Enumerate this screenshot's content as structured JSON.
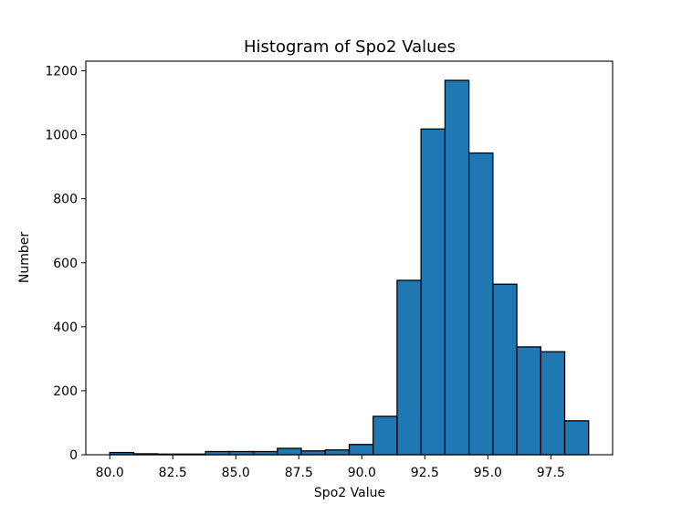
{
  "chart_data": {
    "type": "bar",
    "title": "Histogram of Spo2 Values",
    "xlabel": "Spo2 Value",
    "ylabel": "Number",
    "xlim": [
      79.05,
      99.95
    ],
    "ylim": [
      0,
      1230
    ],
    "xticks": [
      80.0,
      82.5,
      85.0,
      87.5,
      90.0,
      92.5,
      95.0,
      97.5
    ],
    "xtick_labels": [
      "80.0",
      "82.5",
      "85.0",
      "87.5",
      "90.0",
      "92.5",
      "95.0",
      "97.5"
    ],
    "yticks": [
      0,
      200,
      400,
      600,
      800,
      1000,
      1200
    ],
    "ytick_labels": [
      "0",
      "200",
      "400",
      "600",
      "800",
      "1000",
      "1200"
    ],
    "bin_edges": [
      80.0,
      80.95,
      81.9,
      82.85,
      83.8,
      84.75,
      85.7,
      86.65,
      87.6,
      88.55,
      89.5,
      90.45,
      91.4,
      92.35,
      93.3,
      94.25,
      95.2,
      96.15,
      97.1,
      98.05,
      99.0
    ],
    "values": [
      7,
      3,
      2,
      2,
      10,
      10,
      10,
      20,
      12,
      15,
      32,
      120,
      545,
      1018,
      1170,
      943,
      533,
      337,
      322,
      106
    ],
    "bar_color": "#1f77b4",
    "edge_color": "#000000",
    "grid": false,
    "legend": "none"
  }
}
